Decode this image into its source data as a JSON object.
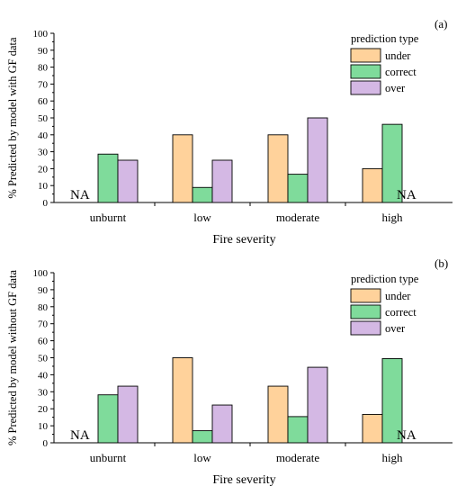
{
  "colors": {
    "under": "#ffd29b",
    "correct": "#7fdb9b",
    "over": "#d4b8e4"
  },
  "chart_data": [
    {
      "type": "bar",
      "panel_label": "(a)",
      "ylabel": "% Predicted by model with GF data",
      "xlabel": "Fire severity",
      "ylim": [
        0,
        100
      ],
      "yticks": [
        "0",
        "10",
        "20",
        "30",
        "40",
        "50",
        "60",
        "70",
        "80",
        "90",
        "100"
      ],
      "categories": [
        "unburnt",
        "low",
        "moderate",
        "high"
      ],
      "legend_title": "prediction type",
      "legend_position": "top-right",
      "series": [
        {
          "name": "under",
          "values": [
            null,
            40,
            40,
            20
          ]
        },
        {
          "name": "correct",
          "values": [
            28.6,
            8.9,
            16.7,
            46.2
          ]
        },
        {
          "name": "over",
          "values": [
            25,
            25,
            50,
            null
          ]
        }
      ],
      "na_label": "NA"
    },
    {
      "type": "bar",
      "panel_label": "(b)",
      "ylabel": "% Predicted by model without GF data",
      "xlabel": "Fire severity",
      "ylim": [
        0,
        100
      ],
      "yticks": [
        "0",
        "10",
        "20",
        "30",
        "40",
        "50",
        "60",
        "70",
        "80",
        "90",
        "100"
      ],
      "categories": [
        "unburnt",
        "low",
        "moderate",
        "high"
      ],
      "legend_title": "prediction type",
      "legend_position": "top-right",
      "series": [
        {
          "name": "under",
          "values": [
            null,
            50,
            33.3,
            16.7
          ]
        },
        {
          "name": "correct",
          "values": [
            28.2,
            7.1,
            15.4,
            49.5
          ]
        },
        {
          "name": "over",
          "values": [
            33.3,
            22.2,
            44.4,
            null
          ]
        }
      ],
      "na_label": "NA"
    }
  ]
}
